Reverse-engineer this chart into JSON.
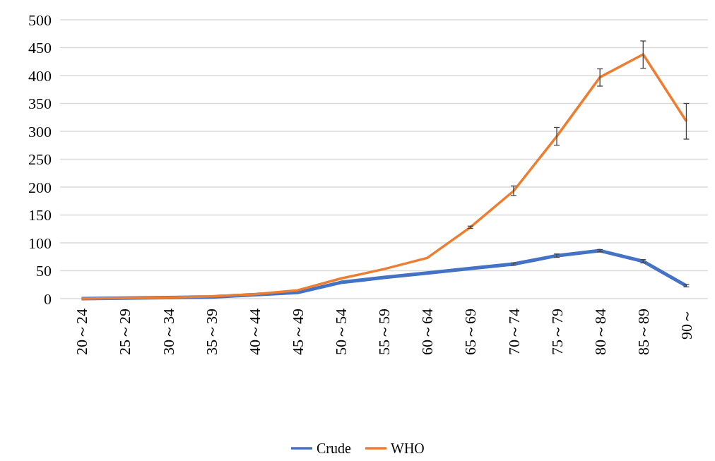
{
  "chart_data": {
    "type": "line",
    "categories": [
      "20～24",
      "25～29",
      "30～34",
      "35～39",
      "40～44",
      "45～49",
      "50～54",
      "55～59",
      "60～64",
      "65～69",
      "70～74",
      "75～79",
      "80～84",
      "85～89",
      "90～"
    ],
    "series": [
      {
        "name": "Crude",
        "color": "#4472c4",
        "values": [
          0,
          1,
          2,
          3,
          7,
          11,
          29,
          38,
          46,
          54,
          62,
          77,
          86,
          67,
          23
        ],
        "errors": [
          null,
          null,
          null,
          null,
          null,
          null,
          null,
          null,
          null,
          null,
          2,
          3,
          2,
          3,
          2
        ]
      },
      {
        "name": "WHO",
        "color": "#ed7d31",
        "values": [
          0,
          1,
          2,
          4,
          8,
          15,
          36,
          53,
          73,
          128,
          193,
          291,
          397,
          438,
          318
        ],
        "errors": [
          null,
          null,
          null,
          null,
          null,
          null,
          null,
          null,
          null,
          2,
          [
            185,
            202
          ],
          [
            275,
            307
          ],
          [
            381,
            412
          ],
          [
            413,
            462
          ],
          [
            286,
            350
          ]
        ]
      }
    ],
    "ylim": [
      0,
      500
    ],
    "yticks": [
      0,
      50,
      100,
      150,
      200,
      250,
      300,
      350,
      400,
      450,
      500
    ],
    "grid": "y",
    "legend": "bottom",
    "marker": "none",
    "line_style": "solid"
  }
}
